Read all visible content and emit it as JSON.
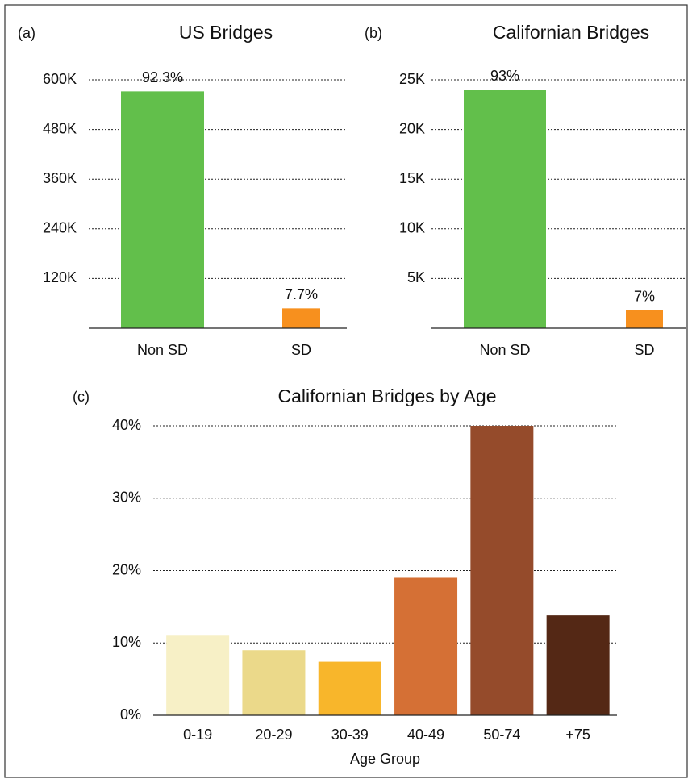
{
  "chart_data": [
    {
      "type": "bar",
      "panel_label": "(a)",
      "title": "US Bridges",
      "categories": [
        "Non SD",
        "SD"
      ],
      "values": [
        572000,
        48000
      ],
      "colors": [
        "#62bf4b",
        "#f7901e"
      ],
      "bar_annotations": [
        "92.3%",
        "7.7%"
      ],
      "ylim": [
        0,
        600000
      ],
      "yticks": [
        {
          "value": 120000,
          "label": "120K"
        },
        {
          "value": 240000,
          "label": "240K"
        },
        {
          "value": 360000,
          "label": "360K"
        },
        {
          "value": 480000,
          "label": "480K"
        },
        {
          "value": 600000,
          "label": "600K"
        }
      ],
      "grid": true
    },
    {
      "type": "bar",
      "panel_label": "(b)",
      "title": "Californian Bridges",
      "categories": [
        "Non SD",
        "SD"
      ],
      "values": [
        24000,
        1800
      ],
      "colors": [
        "#62bf4b",
        "#f7901e"
      ],
      "bar_annotations": [
        "93%",
        "7%"
      ],
      "ylim": [
        0,
        25000
      ],
      "yticks": [
        {
          "value": 5000,
          "label": "5K"
        },
        {
          "value": 10000,
          "label": "10K"
        },
        {
          "value": 15000,
          "label": "15K"
        },
        {
          "value": 20000,
          "label": "20K"
        },
        {
          "value": 25000,
          "label": "25K"
        }
      ],
      "grid": true
    },
    {
      "type": "bar",
      "panel_label": "(c)",
      "title": "Californian Bridges by Age",
      "x_label": "Age Group",
      "categories": [
        "0-19",
        "20-29",
        "30-39",
        "40-49",
        "50-74",
        "+75"
      ],
      "values": [
        11,
        9,
        7.4,
        19,
        40,
        13.8
      ],
      "colors": [
        "#f7f0c6",
        "#ebd98a",
        "#f8b62b",
        "#d57035",
        "#954b2b",
        "#542815"
      ],
      "ylim": [
        0,
        40
      ],
      "yticks": [
        {
          "value": 0,
          "label": "0%"
        },
        {
          "value": 10,
          "label": "10%"
        },
        {
          "value": 20,
          "label": "20%"
        },
        {
          "value": 30,
          "label": "30%"
        },
        {
          "value": 40,
          "label": "40%"
        }
      ],
      "grid": true
    }
  ]
}
